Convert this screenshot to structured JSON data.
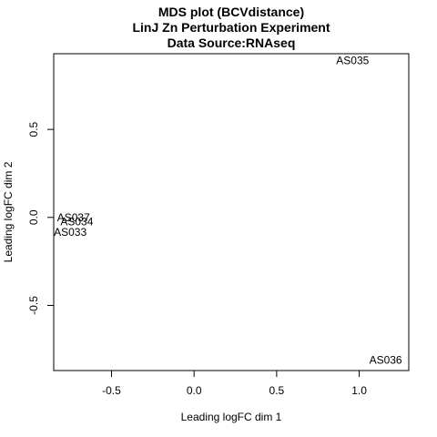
{
  "chart_data": {
    "type": "scatter",
    "title": [
      "MDS plot (BCVdistance)",
      "LinJ Zn Perturbation Experiment",
      "Data Source:RNAseq"
    ],
    "xlabel": "Leading logFC dim 1",
    "ylabel": "Leading logFC dim 2",
    "xlim": [
      -0.85,
      1.3
    ],
    "ylim": [
      -0.87,
      0.93
    ],
    "xticks": [
      -0.5,
      0.0,
      0.5,
      1.0
    ],
    "xtick_labels": [
      "-0.5",
      "0.0",
      "0.5",
      "1.0"
    ],
    "yticks": [
      -0.5,
      0.0,
      0.5
    ],
    "ytick_labels": [
      "-0.5",
      "0.0",
      "0.5"
    ],
    "points": [
      {
        "label": "AS035",
        "x": 0.96,
        "y": 0.89
      },
      {
        "label": "AS037",
        "x": -0.73,
        "y": 0.0
      },
      {
        "label": "AS034",
        "x": -0.71,
        "y": -0.025
      },
      {
        "label": "AS033",
        "x": -0.75,
        "y": -0.085
      },
      {
        "label": "AS036",
        "x": 1.16,
        "y": -0.81
      }
    ],
    "marker": "text-label"
  }
}
